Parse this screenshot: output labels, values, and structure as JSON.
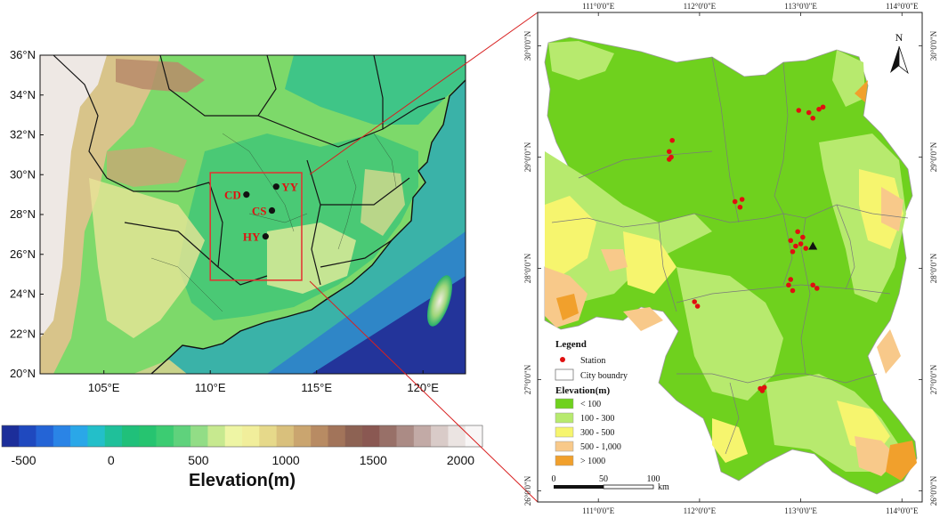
{
  "left_map": {
    "lat_labels": [
      "36°N",
      "34°N",
      "32°N",
      "30°N",
      "28°N",
      "26°N",
      "24°N",
      "22°N",
      "20°N"
    ],
    "lon_labels": [
      "105°E",
      "110°E",
      "115°E",
      "120°E"
    ],
    "cities": [
      {
        "code": "CD",
        "lon": 111.7,
        "lat": 29.0
      },
      {
        "code": "YY",
        "lon": 113.1,
        "lat": 29.4
      },
      {
        "code": "CS",
        "lon": 112.9,
        "lat": 28.2
      },
      {
        "code": "HY",
        "lon": 112.6,
        "lat": 26.9
      }
    ],
    "study_box": {
      "lon_min": 110.0,
      "lon_max": 114.3,
      "lat_min": 24.7,
      "lat_max": 30.1,
      "color": "#e53030"
    }
  },
  "colorbar": {
    "title": "Elevation(m)",
    "tick_labels": [
      "-500",
      "0",
      "500",
      "1000",
      "1500",
      "2000"
    ],
    "colors": [
      "#1c2e9a",
      "#1f49bf",
      "#2464d6",
      "#2a84e6",
      "#2aa7e8",
      "#23bfc9",
      "#1fc09a",
      "#20c07a",
      "#26c470",
      "#3ccc72",
      "#5fd27c",
      "#92dd86",
      "#c7e98f",
      "#eef5a4",
      "#f1ee9b",
      "#e6d98a",
      "#d9c07c",
      "#caa56f",
      "#b88b63",
      "#a2745a",
      "#8d6253",
      "#8a5852",
      "#987068",
      "#ab8b85",
      "#c2aaa6",
      "#d9cbc8",
      "#ebe4e2",
      "#f8f6f6"
    ]
  },
  "right_map": {
    "lon_labels": [
      "111°0'0\"E",
      "112°0'0\"E",
      "113°0'0\"E",
      "114°0'0\"E"
    ],
    "lat_labels": [
      "30°0'0\"N",
      "29°0'0\"N",
      "28°0'0\"N",
      "27°0'0\"N",
      "26°0'0\"N"
    ],
    "north_label": "N",
    "legend": {
      "title": "Legend",
      "station_label": "Station",
      "city_label": "City boundry",
      "elevation_title": "Elevation(m)",
      "classes": [
        {
          "label": "< 100",
          "color": "#6fd11e"
        },
        {
          "label": "100 - 300",
          "color": "#b7ea6e"
        },
        {
          "label": "300 - 500",
          "color": "#f6f56e"
        },
        {
          "label": "500 - 1,000",
          "color": "#f8c98a"
        },
        {
          "label": "> 1000",
          "color": "#f1a02c"
        }
      ]
    },
    "scalebar": {
      "labels": [
        "0",
        "50",
        "100"
      ],
      "unit": "km"
    },
    "stations": [
      {
        "lon": 111.7,
        "lat": 29.05
      },
      {
        "lon": 111.72,
        "lat": 29.0
      },
      {
        "lon": 111.7,
        "lat": 28.98
      },
      {
        "lon": 111.73,
        "lat": 29.15
      },
      {
        "lon": 112.35,
        "lat": 28.6
      },
      {
        "lon": 112.4,
        "lat": 28.55
      },
      {
        "lon": 112.42,
        "lat": 28.62
      },
      {
        "lon": 112.98,
        "lat": 29.42
      },
      {
        "lon": 113.08,
        "lat": 29.4
      },
      {
        "lon": 113.18,
        "lat": 29.43
      },
      {
        "lon": 113.12,
        "lat": 29.35
      },
      {
        "lon": 113.22,
        "lat": 29.45
      },
      {
        "lon": 112.9,
        "lat": 28.25
      },
      {
        "lon": 112.95,
        "lat": 28.2
      },
      {
        "lon": 113.0,
        "lat": 28.22
      },
      {
        "lon": 112.92,
        "lat": 28.15
      },
      {
        "lon": 113.02,
        "lat": 28.28
      },
      {
        "lon": 112.97,
        "lat": 28.33
      },
      {
        "lon": 113.05,
        "lat": 28.18
      },
      {
        "lon": 112.88,
        "lat": 27.85
      },
      {
        "lon": 112.92,
        "lat": 27.8
      },
      {
        "lon": 112.9,
        "lat": 27.9
      },
      {
        "lon": 113.12,
        "lat": 27.85
      },
      {
        "lon": 113.16,
        "lat": 27.82
      },
      {
        "lon": 111.95,
        "lat": 27.7
      },
      {
        "lon": 111.98,
        "lat": 27.66
      },
      {
        "lon": 112.6,
        "lat": 26.92
      },
      {
        "lon": 112.62,
        "lat": 26.9
      },
      {
        "lon": 112.64,
        "lat": 26.93
      }
    ],
    "triangle": {
      "lon": 113.12,
      "lat": 28.2
    }
  }
}
